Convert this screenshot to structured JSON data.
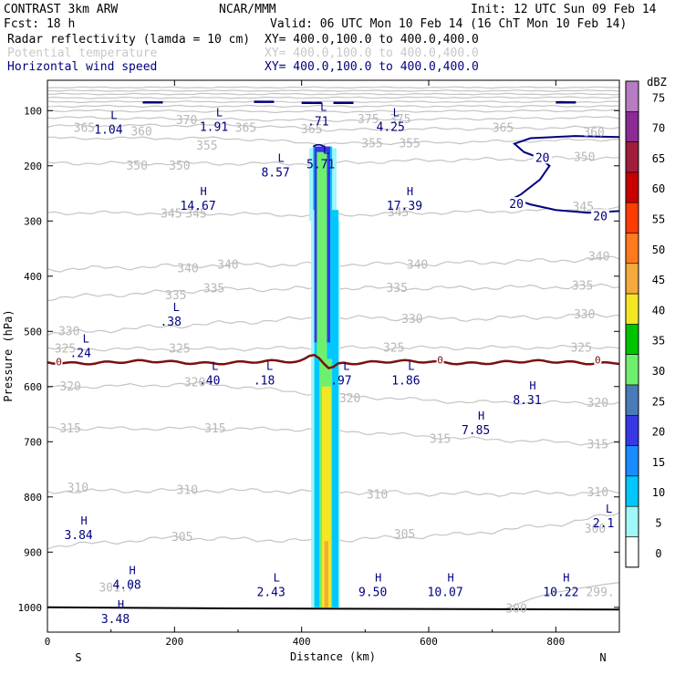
{
  "header": {
    "line1_left": "CONTRAST  3km ARW",
    "line1_mid": "NCAR/MMM",
    "line1_right": "Init: 12 UTC Sun 09 Feb 14",
    "line2_left": "Fcst:   18 h",
    "line2_right": "Valid: 06 UTC Mon 10 Feb 14 (16 ChT Mon 10 Feb 14)",
    "fields": [
      {
        "name": "Radar reflectivity (lamda = 10 cm)",
        "xy": "XY= 400.0,100.0 to 400.0,400.0",
        "color": "#000000"
      },
      {
        "name": "Potential temperature",
        "xy": "XY= 400.0,100.0 to 400.0,400.0",
        "color": "#c8c8c8"
      },
      {
        "name": "Horizontal wind speed",
        "xy": "XY= 400.0,100.0 to 400.0,400.0",
        "color": "#00007f"
      }
    ]
  },
  "chart_data": {
    "type": "cross-section",
    "xlabel": "Distance (km)",
    "ylabel": "Pressure (hPa)",
    "xlim": [
      0,
      900
    ],
    "ylim": [
      1045,
      45
    ],
    "x_ticks": [
      0,
      200,
      400,
      600,
      800
    ],
    "y_ticks": [
      100,
      200,
      300,
      400,
      500,
      600,
      700,
      800,
      900,
      1000
    ],
    "x_end_labels": [
      "S",
      "N"
    ],
    "colorbar": {
      "unit": "dBZ",
      "levels": [
        0,
        5,
        10,
        15,
        20,
        25,
        30,
        35,
        40,
        45,
        50,
        55,
        60,
        65,
        70,
        75
      ],
      "colors": [
        "#ffffff",
        "#9ff7f7",
        "#00c8ff",
        "#1a8cff",
        "#3737e6",
        "#4a7ab8",
        "#6ef06e",
        "#00c300",
        "#f5e623",
        "#f5aa3c",
        "#ff7a1e",
        "#ff3c00",
        "#c80000",
        "#a01e3c",
        "#8c2a96",
        "#b77cc2"
      ]
    },
    "theta_labels": [
      {
        "text": "375",
        "x": 505,
        "p": 116
      },
      {
        "text": "375",
        "x": 555,
        "p": 116
      },
      {
        "text": "370",
        "x": 219,
        "p": 118
      },
      {
        "text": "365",
        "x": 58,
        "p": 132
      },
      {
        "text": "360",
        "x": 148,
        "p": 138
      },
      {
        "text": "365",
        "x": 312,
        "p": 132
      },
      {
        "text": "365",
        "x": 416,
        "p": 134
      },
      {
        "text": "365",
        "x": 717,
        "p": 132
      },
      {
        "text": "360",
        "x": 860,
        "p": 140
      },
      {
        "text": "355",
        "x": 251,
        "p": 164
      },
      {
        "text": "355",
        "x": 511,
        "p": 160
      },
      {
        "text": "355",
        "x": 570,
        "p": 160
      },
      {
        "text": "350",
        "x": 141,
        "p": 200
      },
      {
        "text": "350",
        "x": 208,
        "p": 200
      },
      {
        "text": "350",
        "x": 845,
        "p": 185
      },
      {
        "text": "345",
        "x": 195,
        "p": 287
      },
      {
        "text": "345",
        "x": 234,
        "p": 287
      },
      {
        "text": "345",
        "x": 552,
        "p": 285
      },
      {
        "text": "345",
        "x": 843,
        "p": 275
      },
      {
        "text": "340",
        "x": 221,
        "p": 386
      },
      {
        "text": "340",
        "x": 284,
        "p": 380
      },
      {
        "text": "340",
        "x": 582,
        "p": 380
      },
      {
        "text": "340",
        "x": 868,
        "p": 365
      },
      {
        "text": "335",
        "x": 202,
        "p": 435
      },
      {
        "text": "335",
        "x": 262,
        "p": 423
      },
      {
        "text": "335",
        "x": 550,
        "p": 422
      },
      {
        "text": "335",
        "x": 842,
        "p": 418
      },
      {
        "text": "330",
        "x": 34,
        "p": 500
      },
      {
        "text": "330",
        "x": 574,
        "p": 478
      },
      {
        "text": "330",
        "x": 845,
        "p": 470
      },
      {
        "text": "325",
        "x": 28,
        "p": 532
      },
      {
        "text": "325",
        "x": 208,
        "p": 532
      },
      {
        "text": "325",
        "x": 545,
        "p": 530
      },
      {
        "text": "325",
        "x": 840,
        "p": 530
      },
      {
        "text": "320",
        "x": 36,
        "p": 600
      },
      {
        "text": "320",
        "x": 232,
        "p": 593
      },
      {
        "text": "320",
        "x": 476,
        "p": 622
      },
      {
        "text": "320",
        "x": 866,
        "p": 630
      },
      {
        "text": "315",
        "x": 36,
        "p": 676
      },
      {
        "text": "315",
        "x": 264,
        "p": 676
      },
      {
        "text": "315",
        "x": 618,
        "p": 695
      },
      {
        "text": "315",
        "x": 866,
        "p": 705
      },
      {
        "text": "310",
        "x": 48,
        "p": 784
      },
      {
        "text": "310",
        "x": 220,
        "p": 788
      },
      {
        "text": "310",
        "x": 519,
        "p": 796
      },
      {
        "text": "310",
        "x": 866,
        "p": 792
      },
      {
        "text": "305",
        "x": 212,
        "p": 873
      },
      {
        "text": "305",
        "x": 562,
        "p": 868
      },
      {
        "text": "300",
        "x": 862,
        "p": 858
      },
      {
        "text": "301.7",
        "x": 109,
        "p": 965
      },
      {
        "text": "300",
        "x": 738,
        "p": 1003
      },
      {
        "text": "299.",
        "x": 870,
        "p": 973
      }
    ],
    "extrema": [
      {
        "kind": "L",
        "value": "1.04",
        "x": 96,
        "p": 125
      },
      {
        "kind": "L",
        "value": "1.91",
        "x": 262,
        "p": 120
      },
      {
        "kind": "L",
        "value": ".71",
        "x": 426,
        "p": 110
      },
      {
        "kind": "L",
        "value": "4.25",
        "x": 540,
        "p": 120
      },
      {
        "kind": "L",
        "value": "8.57",
        "x": 359,
        "p": 203
      },
      {
        "kind": "L",
        "value": "5.71",
        "x": 430,
        "p": 188
      },
      {
        "kind": "H",
        "value": "14.67",
        "x": 237,
        "p": 263
      },
      {
        "kind": "H",
        "value": "17.39",
        "x": 562,
        "p": 263
      },
      {
        "kind": "L",
        "value": ".38",
        "x": 194,
        "p": 473
      },
      {
        "kind": "L",
        "value": ".24",
        "x": 52,
        "p": 530
      },
      {
        "kind": "L",
        "value": ".40",
        "x": 255,
        "p": 580
      },
      {
        "kind": "L",
        "value": ".18",
        "x": 341,
        "p": 580
      },
      {
        "kind": "L",
        "value": ".97",
        "x": 462,
        "p": 580
      },
      {
        "kind": "L",
        "value": "1.86",
        "x": 564,
        "p": 580
      },
      {
        "kind": "H",
        "value": "8.31",
        "x": 755,
        "p": 615
      },
      {
        "kind": "H",
        "value": "7.85",
        "x": 674,
        "p": 670
      },
      {
        "kind": "L",
        "value": "2.1",
        "x": 875,
        "p": 838
      },
      {
        "kind": "H",
        "value": "3.84",
        "x": 49,
        "p": 860
      },
      {
        "kind": "H",
        "value": "4.08",
        "x": 125,
        "p": 950
      },
      {
        "kind": "L",
        "value": "2.43",
        "x": 352,
        "p": 963
      },
      {
        "kind": "H",
        "value": "9.50",
        "x": 512,
        "p": 963
      },
      {
        "kind": "H",
        "value": "10.07",
        "x": 626,
        "p": 963
      },
      {
        "kind": "H",
        "value": "10.22",
        "x": 808,
        "p": 963
      },
      {
        "kind": "H",
        "value": "3.48",
        "x": 107,
        "p": 1012
      }
    ],
    "wind_labels": [
      {
        "text": "20",
        "x": 779,
        "p": 186
      },
      {
        "text": "20",
        "x": 738,
        "p": 270
      },
      {
        "text": "20",
        "x": 870,
        "p": 292
      }
    ],
    "zero_labels": [
      {
        "text": "0",
        "x": 18,
        "p": 555
      },
      {
        "text": "0",
        "x": 618,
        "p": 552
      },
      {
        "text": "0",
        "x": 866,
        "p": 552
      }
    ],
    "wind_contour_20": [
      [
        900,
        148
      ],
      [
        830,
        146
      ],
      [
        760,
        150
      ],
      [
        735,
        160
      ],
      [
        750,
        175
      ],
      [
        775,
        186
      ],
      [
        790,
        200
      ],
      [
        775,
        225
      ],
      [
        745,
        252
      ],
      [
        735,
        258
      ],
      [
        740,
        262
      ],
      [
        760,
        270
      ],
      [
        800,
        280
      ],
      [
        850,
        285
      ],
      [
        900,
        282
      ]
    ],
    "reflectivity_plume": {
      "x_range_km": [
        416,
        452
      ],
      "top_hPa": 160,
      "bottom_hPa": 1000,
      "strongest_dBZ": 40
    }
  }
}
